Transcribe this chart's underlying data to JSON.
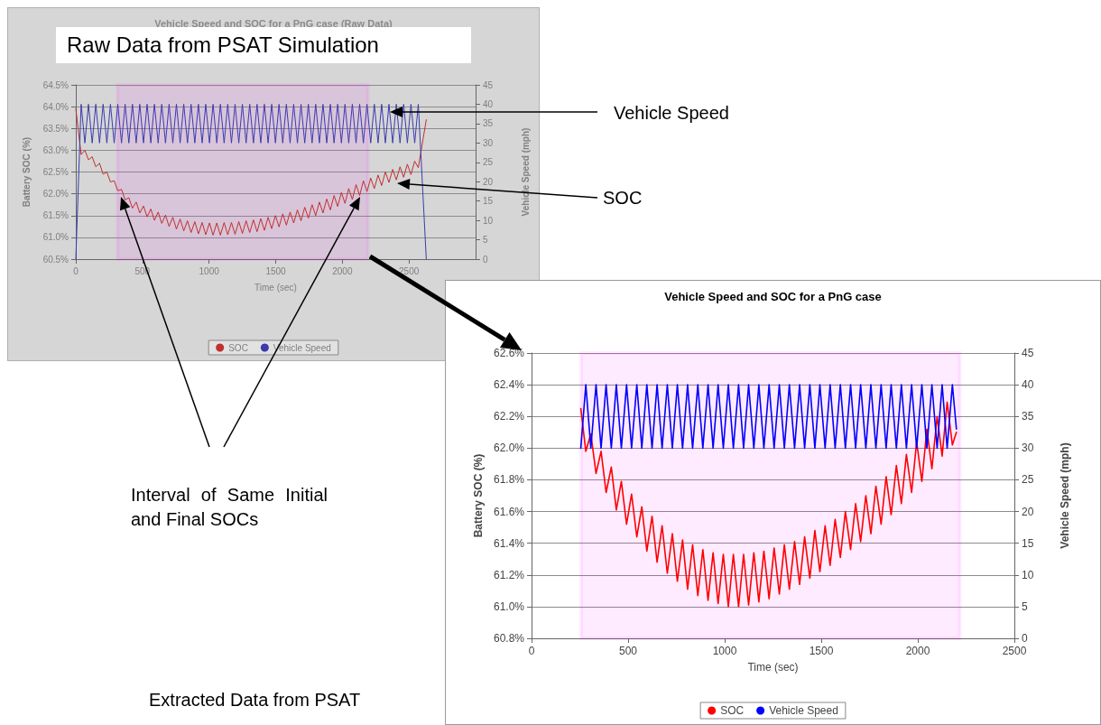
{
  "chart_data": [
    {
      "type": "line",
      "title": "Vehicle Speed and SOC for a PnG case (Raw Data)",
      "xlabel": "Time (sec)",
      "ylabel": "Battery SOC (%)",
      "y2label": "Vehicle Speed (mph)",
      "annotations": [
        "Raw Data from PSAT Simulation",
        "Vehicle Speed",
        "SOC",
        "Interval of Same Initial and Final SOCs"
      ],
      "x": [
        0,
        40,
        68,
        95,
        123,
        150,
        178,
        205,
        233,
        260,
        288,
        315,
        343,
        370,
        398,
        425,
        453,
        480,
        508,
        535,
        563,
        590,
        618,
        645,
        673,
        700,
        728,
        755,
        783,
        810,
        838,
        865,
        893,
        920,
        948,
        975,
        1003,
        1030,
        1058,
        1085,
        1113,
        1140,
        1168,
        1195,
        1223,
        1250,
        1278,
        1305,
        1333,
        1360,
        1388,
        1415,
        1443,
        1470,
        1498,
        1525,
        1553,
        1580,
        1608,
        1635,
        1663,
        1690,
        1718,
        1745,
        1773,
        1800,
        1828,
        1855,
        1883,
        1910,
        1938,
        1965,
        1993,
        2020,
        2048,
        2075,
        2103,
        2130,
        2158,
        2185,
        2213,
        2240,
        2268,
        2295,
        2323,
        2350,
        2378,
        2405,
        2433,
        2460,
        2488,
        2515,
        2543,
        2570,
        2630
      ],
      "series": [
        {
          "name": "SOC",
          "color": "#c03030",
          "values": [
            63.95,
            62.9,
            63.0,
            62.78,
            62.85,
            62.62,
            62.7,
            62.45,
            62.5,
            62.27,
            62.3,
            62.07,
            62.1,
            61.86,
            61.91,
            61.67,
            61.81,
            61.56,
            61.72,
            61.47,
            61.65,
            61.39,
            61.58,
            61.32,
            61.51,
            61.25,
            61.46,
            61.19,
            61.42,
            61.15,
            61.38,
            61.11,
            61.36,
            61.08,
            61.34,
            61.06,
            61.33,
            61.05,
            61.33,
            61.05,
            61.34,
            61.06,
            61.34,
            61.07,
            61.36,
            61.09,
            61.38,
            61.11,
            61.4,
            61.13,
            61.43,
            61.16,
            61.46,
            61.2,
            61.5,
            61.24,
            61.54,
            61.28,
            61.58,
            61.33,
            61.63,
            61.38,
            61.69,
            61.44,
            61.75,
            61.5,
            61.81,
            61.56,
            61.88,
            61.63,
            61.96,
            61.71,
            62.03,
            61.78,
            62.12,
            61.87,
            62.21,
            61.96,
            62.3,
            62.05,
            62.36,
            62.12,
            62.43,
            62.19,
            62.5,
            62.26,
            62.56,
            62.32,
            62.62,
            62.38,
            62.68,
            62.44,
            62.75,
            62.6,
            63.7
          ]
        },
        {
          "name": "Vehicle Speed",
          "color": "#3b3bb0",
          "axis": "y2",
          "values": [
            0,
            40,
            30,
            40,
            30,
            40,
            30,
            40,
            30,
            40,
            30,
            40,
            30,
            40,
            30,
            40,
            30,
            40,
            30,
            40,
            30,
            40,
            30,
            40,
            30,
            40,
            30,
            40,
            30,
            40,
            30,
            40,
            30,
            40,
            30,
            40,
            30,
            40,
            30,
            40,
            30,
            40,
            30,
            40,
            30,
            40,
            30,
            40,
            30,
            40,
            30,
            40,
            30,
            40,
            30,
            40,
            30,
            40,
            30,
            40,
            30,
            40,
            30,
            40,
            30,
            40,
            30,
            40,
            30,
            40,
            30,
            40,
            30,
            40,
            30,
            40,
            30,
            40,
            30,
            40,
            30,
            40,
            30,
            40,
            30,
            40,
            30,
            40,
            30,
            40,
            30,
            40,
            30,
            40,
            0
          ]
        }
      ],
      "xlim": [
        0,
        3000
      ],
      "xticks": [
        0,
        500,
        1000,
        1500,
        2000,
        2500
      ],
      "ylim": [
        60.5,
        64.5
      ],
      "yticks": [
        {
          "value": 60.5,
          "label": "60.5%"
        },
        {
          "value": 61,
          "label": "61.0%"
        },
        {
          "value": 61.5,
          "label": "61.5%"
        },
        {
          "value": 62,
          "label": "62.0%"
        },
        {
          "value": 62.5,
          "label": "62.5%"
        },
        {
          "value": 63,
          "label": "63.0%"
        },
        {
          "value": 63.5,
          "label": "63.5%"
        },
        {
          "value": 64,
          "label": "64.0%"
        },
        {
          "value": 64.5,
          "label": "64.5%"
        }
      ],
      "y2lim": [
        0,
        45
      ],
      "y2ticks": [
        0,
        5,
        10,
        15,
        20,
        25,
        30,
        35,
        40,
        45
      ],
      "grid": "y",
      "legend": "bottom",
      "bands": [
        {
          "axis": "x",
          "from": 313,
          "to": 2192,
          "color": "#ff00ff"
        }
      ]
    },
    {
      "type": "line",
      "title": "Vehicle Speed and SOC for a PnG case",
      "xlabel": "Time (sec)",
      "ylabel": "Battery SOC (%)",
      "y2label": "Vehicle Speed (mph)",
      "annotations": [
        "Extracted Data from PSAT"
      ],
      "x": [
        255,
        281,
        307,
        334,
        360,
        386,
        413,
        439,
        465,
        492,
        518,
        545,
        571,
        597,
        624,
        650,
        676,
        703,
        729,
        755,
        782,
        808,
        834,
        861,
        887,
        914,
        940,
        966,
        993,
        1019,
        1045,
        1072,
        1098,
        1124,
        1151,
        1177,
        1203,
        1230,
        1256,
        1283,
        1309,
        1335,
        1362,
        1388,
        1414,
        1441,
        1467,
        1493,
        1520,
        1546,
        1572,
        1599,
        1625,
        1652,
        1678,
        1704,
        1731,
        1757,
        1783,
        1810,
        1836,
        1862,
        1889,
        1915,
        1941,
        1968,
        1994,
        2021,
        2047,
        2073,
        2100,
        2126,
        2152,
        2179,
        2200
      ],
      "series": [
        {
          "name": "SOC",
          "color": "#ff0000",
          "values": [
            62.25,
            61.98,
            62.09,
            61.84,
            61.98,
            61.72,
            61.88,
            61.61,
            61.79,
            61.52,
            61.71,
            61.44,
            61.63,
            61.35,
            61.57,
            61.28,
            61.51,
            61.21,
            61.46,
            61.16,
            61.42,
            61.11,
            61.39,
            61.07,
            61.36,
            61.04,
            61.34,
            61.02,
            61.33,
            61.0,
            61.33,
            61.0,
            61.33,
            61.01,
            61.34,
            61.03,
            61.35,
            61.05,
            61.37,
            61.08,
            61.39,
            61.11,
            61.41,
            61.14,
            61.44,
            61.18,
            61.48,
            61.22,
            61.51,
            61.26,
            61.55,
            61.31,
            61.6,
            61.36,
            61.65,
            61.41,
            61.7,
            61.46,
            61.76,
            61.52,
            61.82,
            61.58,
            61.89,
            61.65,
            61.96,
            61.72,
            62.04,
            61.79,
            62.12,
            61.87,
            62.2,
            61.95,
            62.29,
            62.02,
            62.1
          ]
        },
        {
          "name": "Vehicle Speed",
          "color": "#0000ff",
          "axis": "y2",
          "values": [
            30,
            40,
            30,
            40,
            30,
            40,
            30,
            40,
            30,
            40,
            30,
            40,
            30,
            40,
            30,
            40,
            30,
            40,
            30,
            40,
            30,
            40,
            30,
            40,
            30,
            40,
            30,
            40,
            30,
            40,
            30,
            40,
            30,
            40,
            30,
            40,
            30,
            40,
            30,
            40,
            30,
            40,
            30,
            40,
            30,
            40,
            30,
            40,
            30,
            40,
            30,
            40,
            30,
            40,
            30,
            40,
            30,
            40,
            30,
            40,
            30,
            40,
            30,
            40,
            30,
            40,
            30,
            40,
            30,
            40,
            30,
            40,
            30,
            40,
            33
          ]
        }
      ],
      "xlim": [
        0,
        2500
      ],
      "xticks": [
        0,
        500,
        1000,
        1500,
        2000,
        2500
      ],
      "ylim": [
        60.8,
        62.6
      ],
      "yticks": [
        {
          "value": 60.8,
          "label": "60.8%"
        },
        {
          "value": 61,
          "label": "61.0%"
        },
        {
          "value": 61.2,
          "label": "61.2%"
        },
        {
          "value": 61.4,
          "label": "61.4%"
        },
        {
          "value": 61.6,
          "label": "61.6%"
        },
        {
          "value": 61.8,
          "label": "61.8%"
        },
        {
          "value": 62,
          "label": "62.0%"
        },
        {
          "value": 62.2,
          "label": "62.2%"
        },
        {
          "value": 62.4,
          "label": "62.4%"
        },
        {
          "value": 62.6,
          "label": "62.6%"
        }
      ],
      "y2lim": [
        0,
        45
      ],
      "y2ticks": [
        0,
        5,
        10,
        15,
        20,
        25,
        30,
        35,
        40,
        45
      ],
      "grid": "y",
      "legend": "bottom",
      "bands": [
        {
          "axis": "x",
          "from": 257,
          "to": 2218,
          "color": "#ff00ff"
        }
      ]
    }
  ]
}
